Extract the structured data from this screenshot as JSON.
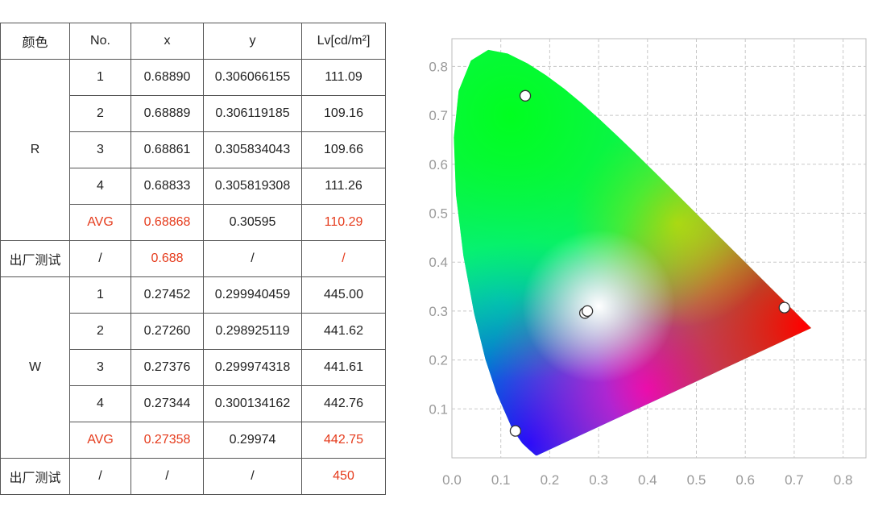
{
  "table": {
    "headers": [
      "颜色",
      "No.",
      "x",
      "y",
      "Lv[cd/m²]"
    ],
    "groups": [
      {
        "color_label": "R",
        "rows": [
          {
            "no": "1",
            "x": "0.68890",
            "y": "0.306066155",
            "lv": "111.09"
          },
          {
            "no": "2",
            "x": "0.68889",
            "y": "0.306119185",
            "lv": "109.16"
          },
          {
            "no": "3",
            "x": "0.68861",
            "y": "0.305834043",
            "lv": "109.66"
          },
          {
            "no": "4",
            "x": "0.68833",
            "y": "0.305819308",
            "lv": "111.26"
          }
        ],
        "avg": {
          "no": "AVG",
          "x": "0.68868",
          "y": "0.30595",
          "lv": "110.29"
        },
        "factory": {
          "label": "出厂测试",
          "no": "/",
          "x": "0.688",
          "y": "/",
          "lv": "/"
        }
      },
      {
        "color_label": "W",
        "rows": [
          {
            "no": "1",
            "x": "0.27452",
            "y": "0.299940459",
            "lv": "445.00"
          },
          {
            "no": "2",
            "x": "0.27260",
            "y": "0.298925119",
            "lv": "441.62"
          },
          {
            "no": "3",
            "x": "0.27376",
            "y": "0.299974318",
            "lv": "441.61"
          },
          {
            "no": "4",
            "x": "0.27344",
            "y": "0.300134162",
            "lv": "442.76"
          }
        ],
        "avg": {
          "no": "AVG",
          "x": "0.27358",
          "y": "0.29974",
          "lv": "442.75"
        },
        "factory": {
          "label": "出厂测试",
          "no": "/",
          "x": "/",
          "y": "/",
          "lv": "450"
        }
      }
    ]
  },
  "chart_data": {
    "type": "scatter",
    "title": "",
    "xlabel": "",
    "ylabel": "",
    "xlim": [
      0.0,
      0.85
    ],
    "ylim": [
      0.0,
      0.85
    ],
    "x_ticks": [
      "0.0",
      "0.1",
      "0.2",
      "0.3",
      "0.4",
      "0.5",
      "0.6",
      "0.7",
      "0.8"
    ],
    "y_ticks": [
      "0.1",
      "0.2",
      "0.3",
      "0.4",
      "0.5",
      "0.6",
      "0.7",
      "0.8"
    ],
    "grid": true,
    "background": "CIE 1931 chromaticity diagram",
    "points": [
      {
        "x": 0.15,
        "y": 0.74
      },
      {
        "x": 0.272,
        "y": 0.296
      },
      {
        "x": 0.277,
        "y": 0.3
      },
      {
        "x": 0.68,
        "y": 0.307
      },
      {
        "x": 0.13,
        "y": 0.055
      }
    ]
  },
  "colors": {
    "highlight_text": "#e53b1c",
    "grid": "#c8c8c8",
    "tick_text": "#9a9a9a"
  }
}
